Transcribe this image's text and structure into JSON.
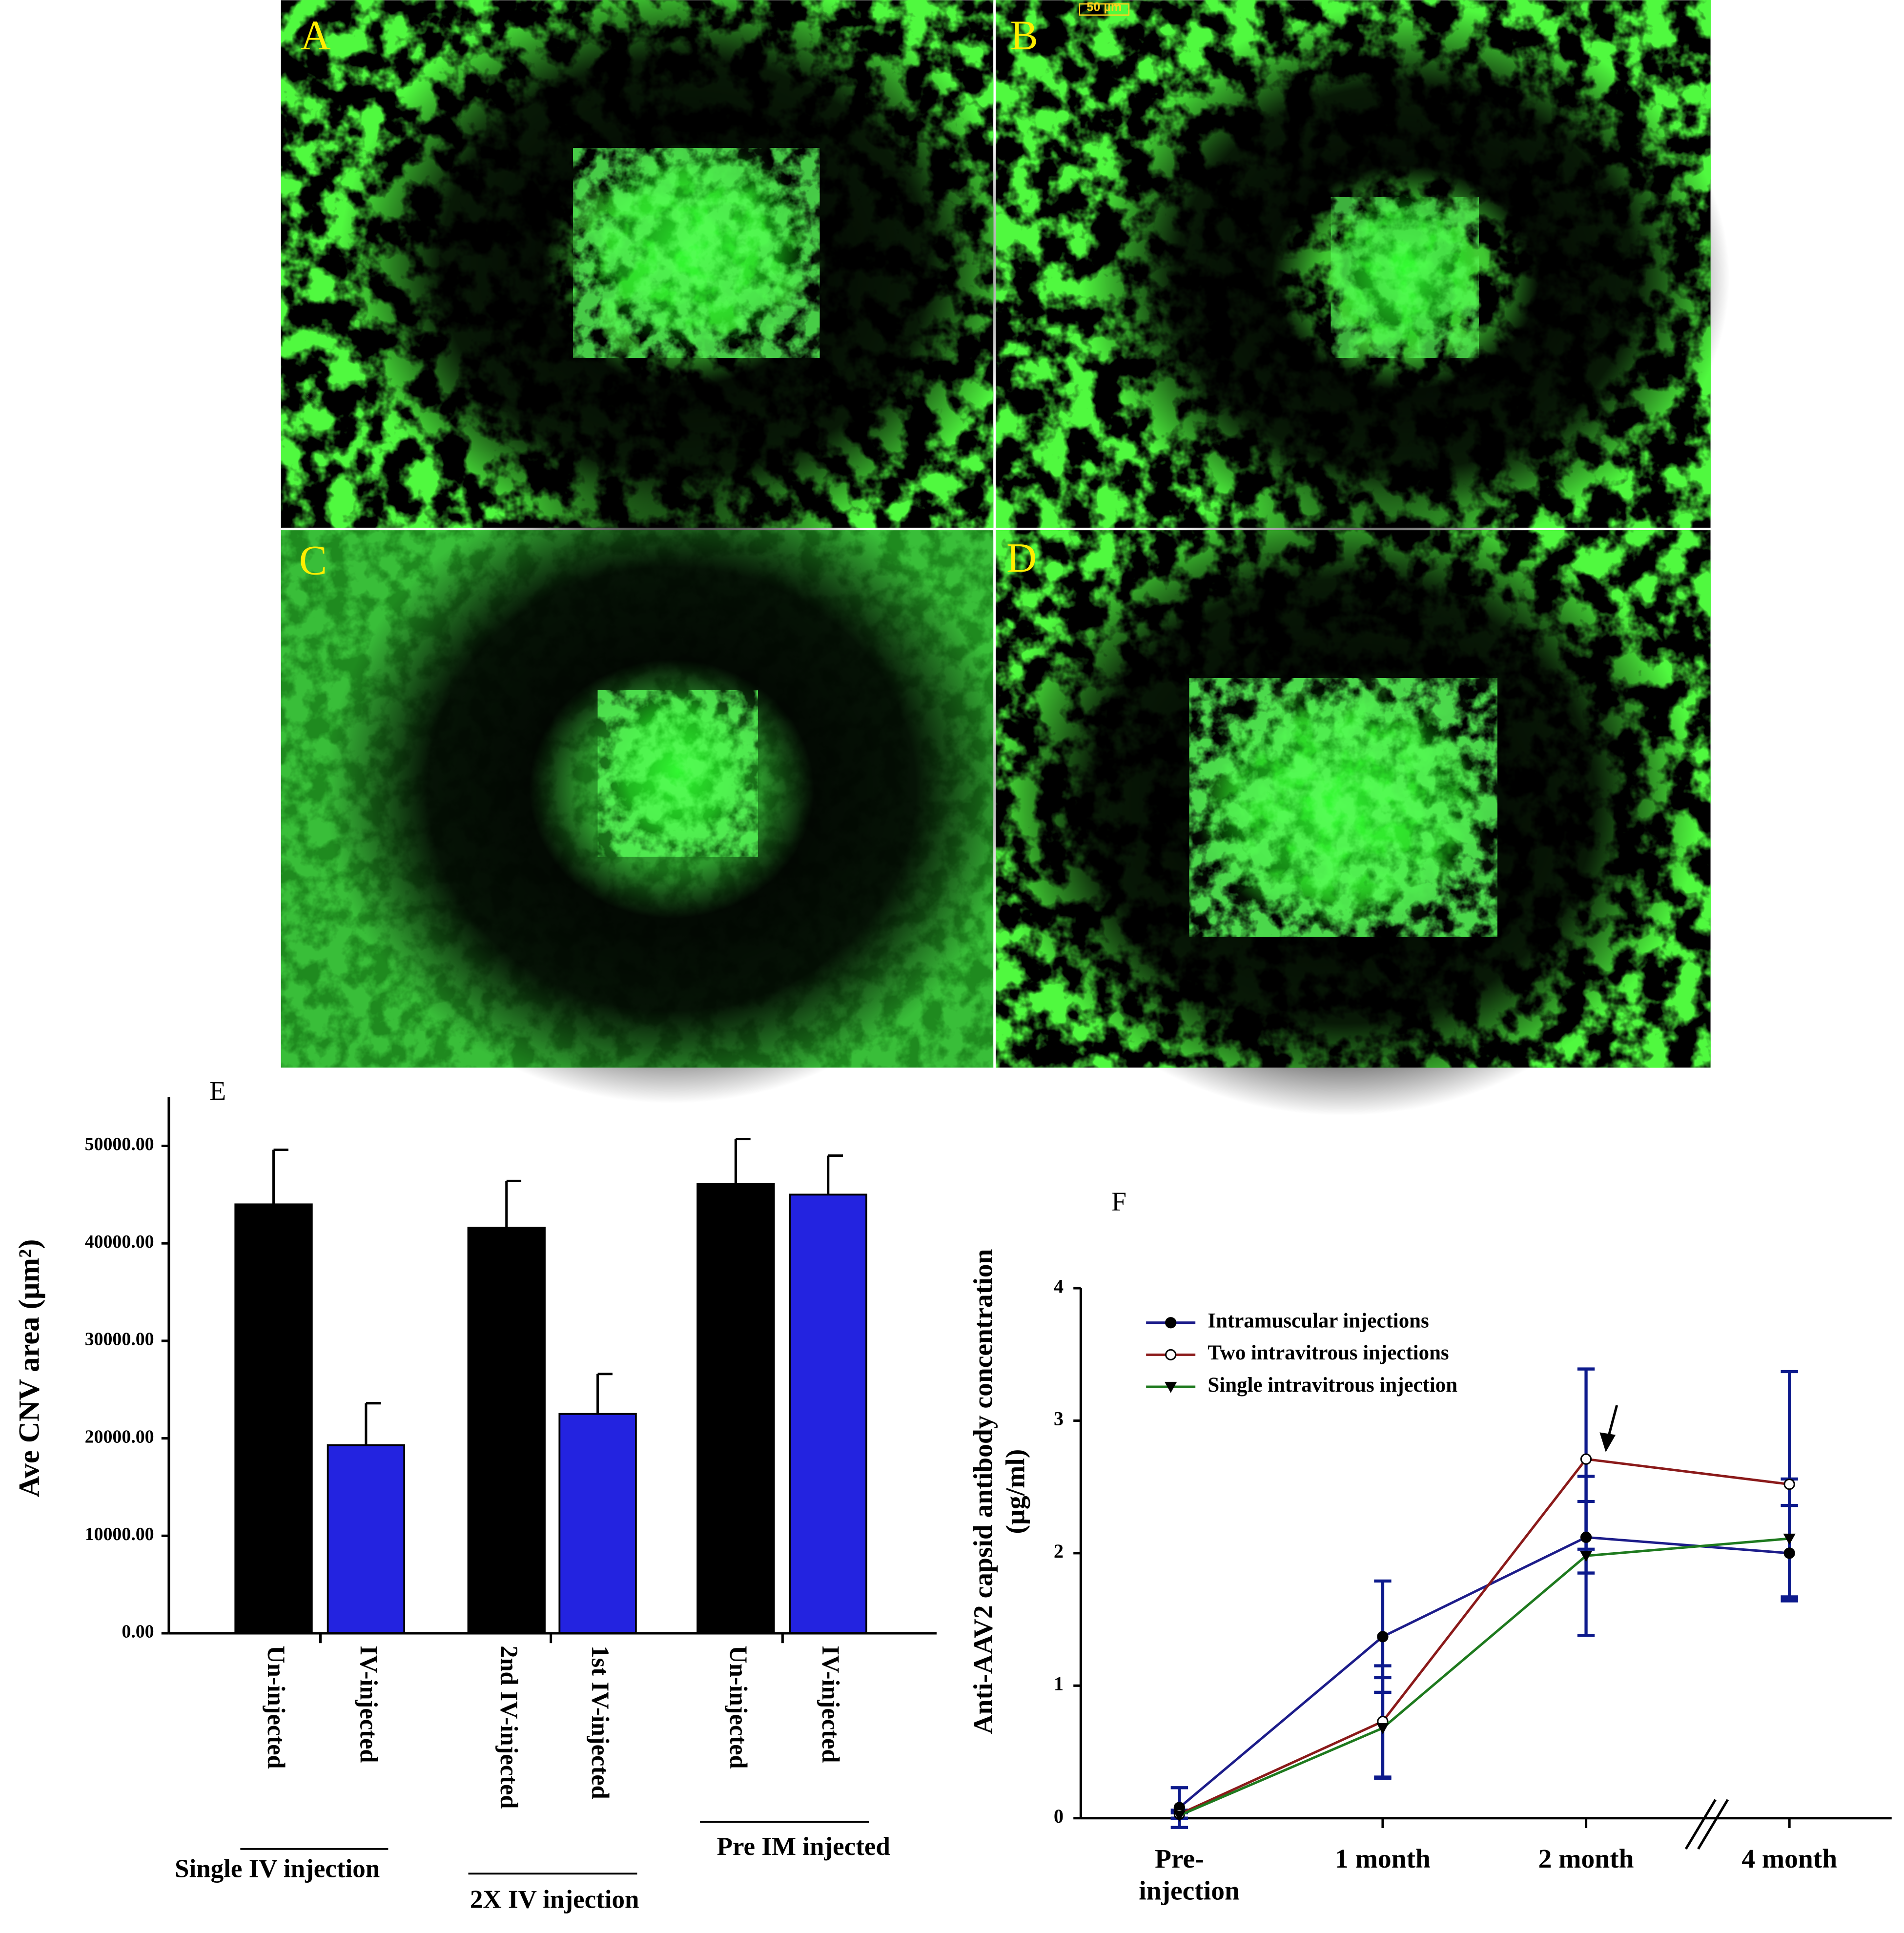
{
  "panel_labels": [
    "A",
    "B",
    "C",
    "D"
  ],
  "scale_bar": "50 µm",
  "chart_data": [
    {
      "type": "bar",
      "title": "E",
      "ylabel": "Ave CNV area (µm²)",
      "categories": [
        "Un-injected",
        "IV-injected",
        "2nd IV-injected",
        "1st IV-injected",
        "Un-injected",
        "IV-injected"
      ],
      "values": [
        44000,
        19300,
        41600,
        22500,
        46100,
        45000
      ],
      "errors": [
        5600,
        4300,
        4800,
        4100,
        4600,
        4000
      ],
      "colors": [
        "#000000",
        "#2323e0",
        "#000000",
        "#2323e0",
        "#000000",
        "#2323e0"
      ],
      "groups": [
        "Single IV injection",
        "2X IV injection",
        "Pre IM injected"
      ],
      "ylim": [
        0,
        55000
      ],
      "yticks": [
        {
          "value": 0,
          "label": "0.00"
        },
        {
          "value": 10000,
          "label": "10000.00"
        },
        {
          "value": 20000,
          "label": "20000.00"
        },
        {
          "value": 30000,
          "label": "30000.00"
        },
        {
          "value": 40000,
          "label": "40000.00"
        },
        {
          "value": 50000,
          "label": "50000.00"
        }
      ]
    },
    {
      "type": "line",
      "title": "F",
      "ylabel": [
        "Anti-AAV2 capsid antibody concentration",
        "(µg/ml)"
      ],
      "categories": [
        "Pre-injection",
        "1 month",
        "2 month",
        "4 month"
      ],
      "ylim": [
        0,
        4
      ],
      "yticks": [
        0,
        1,
        2,
        3,
        4
      ],
      "error_color": "#0d1a8c",
      "legend": "upper left",
      "series": [
        {
          "name": "Intramuscular injections",
          "color": "#1c1c8a",
          "marker": "circle",
          "values": [
            0.08,
            1.37,
            2.12,
            2.0
          ],
          "errors": [
            0.15,
            0.42,
            0.27,
            0.36
          ]
        },
        {
          "name": "Two intravitrous injections",
          "color": "#8b1a1a",
          "marker": "open-circle",
          "values": [
            0.03,
            0.73,
            2.71,
            2.52
          ],
          "errors": [
            0.03,
            0.42,
            0.68,
            0.85
          ]
        },
        {
          "name": "Single intravitrous injection",
          "color": "#1e7a1e",
          "marker": "triangle-down",
          "values": [
            0.02,
            0.68,
            1.98,
            2.11
          ],
          "errors": [
            0.02,
            0.38,
            0.6,
            0.45
          ]
        }
      ]
    }
  ]
}
